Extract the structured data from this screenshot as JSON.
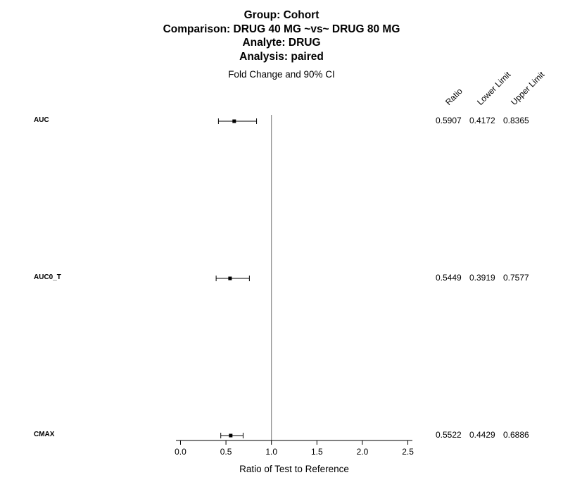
{
  "title": {
    "group": "Group: Cohort",
    "comparison": "Comparison: DRUG 40 MG ~vs~ DRUG 80 MG",
    "analyte": "Analyte: DRUG",
    "analysis": "Analysis: paired"
  },
  "subtitle": "Fold Change and 90% CI",
  "column_headers": [
    "Ratio",
    "Lower Limit",
    "Upper Limit"
  ],
  "rows": [
    {
      "label": "AUC",
      "ratio": "0.5907",
      "lower": "0.4172",
      "upper": "0.8365"
    },
    {
      "label": "AUC0_T",
      "ratio": "0.5449",
      "lower": "0.3919",
      "upper": "0.7577"
    },
    {
      "label": "CMAX",
      "ratio": "0.5522",
      "lower": "0.4429",
      "upper": "0.6886"
    }
  ],
  "chart_data": {
    "type": "scatter",
    "subtype": "forest-plot",
    "xlabel": "Ratio of Test to Reference",
    "xlim": [
      -0.05,
      2.55
    ],
    "xticks": [
      0.0,
      0.5,
      1.0,
      1.5,
      2.0,
      2.5
    ],
    "xtick_labels": [
      "0.0",
      "0.5",
      "1.0",
      "1.5",
      "2.0",
      "2.5"
    ],
    "reference_line": 1.0,
    "categories": [
      "AUC",
      "AUC0_T",
      "CMAX"
    ],
    "ratio": [
      0.5907,
      0.5449,
      0.5522
    ],
    "lower": [
      0.4172,
      0.3919,
      0.4429
    ],
    "upper": [
      0.8365,
      0.7577,
      0.6886
    ]
  }
}
